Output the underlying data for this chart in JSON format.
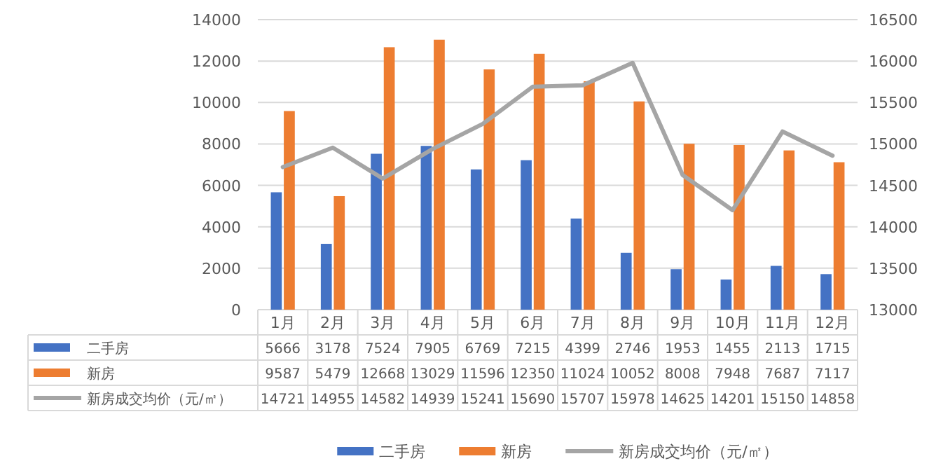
{
  "chart_data": {
    "type": "bar",
    "categories": [
      "1月",
      "2月",
      "3月",
      "4月",
      "5月",
      "6月",
      "7月",
      "8月",
      "9月",
      "10月",
      "11月",
      "12月"
    ],
    "series": [
      {
        "name": "二手房",
        "color": "#4472c4",
        "values": [
          5666,
          3178,
          7524,
          7905,
          6769,
          7215,
          4399,
          2746,
          1953,
          1455,
          2113,
          1715
        ]
      },
      {
        "name": "新房",
        "color": "#ed7d31",
        "values": [
          9587,
          5479,
          12668,
          13029,
          11596,
          12350,
          11024,
          10052,
          8008,
          7948,
          7687,
          7117
        ]
      },
      {
        "name": "新房成交均价（元/㎡）",
        "type": "line",
        "axis": "y2",
        "color": "#a5a5a5",
        "values": [
          14721,
          14955,
          14582,
          14939,
          15241,
          15690,
          15707,
          15978,
          14625,
          14201,
          15150,
          14858
        ]
      }
    ],
    "ylim": [
      0,
      14000
    ],
    "yticks": [
      0,
      2000,
      4000,
      6000,
      8000,
      10000,
      12000,
      14000
    ],
    "y2lim": [
      13000,
      16500
    ],
    "y2ticks": [
      13000,
      13500,
      14000,
      14500,
      15000,
      15500,
      16000,
      16500
    ],
    "grid": "y",
    "legend": "bottom",
    "data_labels": true,
    "line_style": "solid"
  }
}
